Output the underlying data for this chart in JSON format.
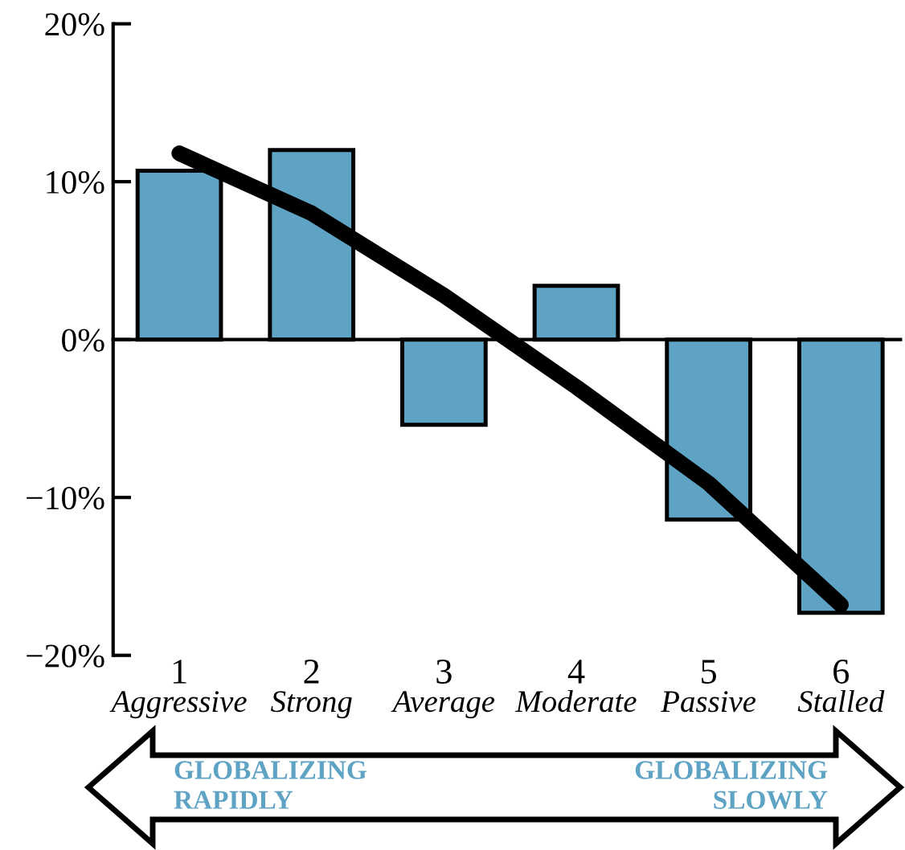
{
  "chart_data": {
    "type": "bar",
    "categories": [
      "1\nAggressive",
      "2\nStrong",
      "3\nAverage",
      "4\nModerate",
      "5\nPassive",
      "6\nStalled"
    ],
    "series": [
      {
        "color": "#5fa3c4",
        "values": [
          10.7,
          12.0,
          -5.4,
          3.4,
          -11.4,
          -17.3
        ]
      },
      {
        "type": "line",
        "color": "#000000",
        "values": [
          11.8,
          8.0,
          2.8,
          -3.0,
          -9.1,
          -16.8
        ]
      }
    ],
    "ylim": [
      -20,
      20
    ],
    "yticks": [
      {
        "value": -20,
        "label": "−20%"
      },
      {
        "value": -10,
        "label": "−10%"
      },
      {
        "value": 0,
        "label": "0%"
      },
      {
        "value": 10,
        "label": "10%"
      },
      {
        "value": 20,
        "label": "20%"
      }
    ],
    "legend": false,
    "marker": "none",
    "line_style": "solid",
    "annotations": [
      "GLOBALIZING\nRAPIDLY",
      "GLOBALIZING\nSLOWLY"
    ]
  }
}
